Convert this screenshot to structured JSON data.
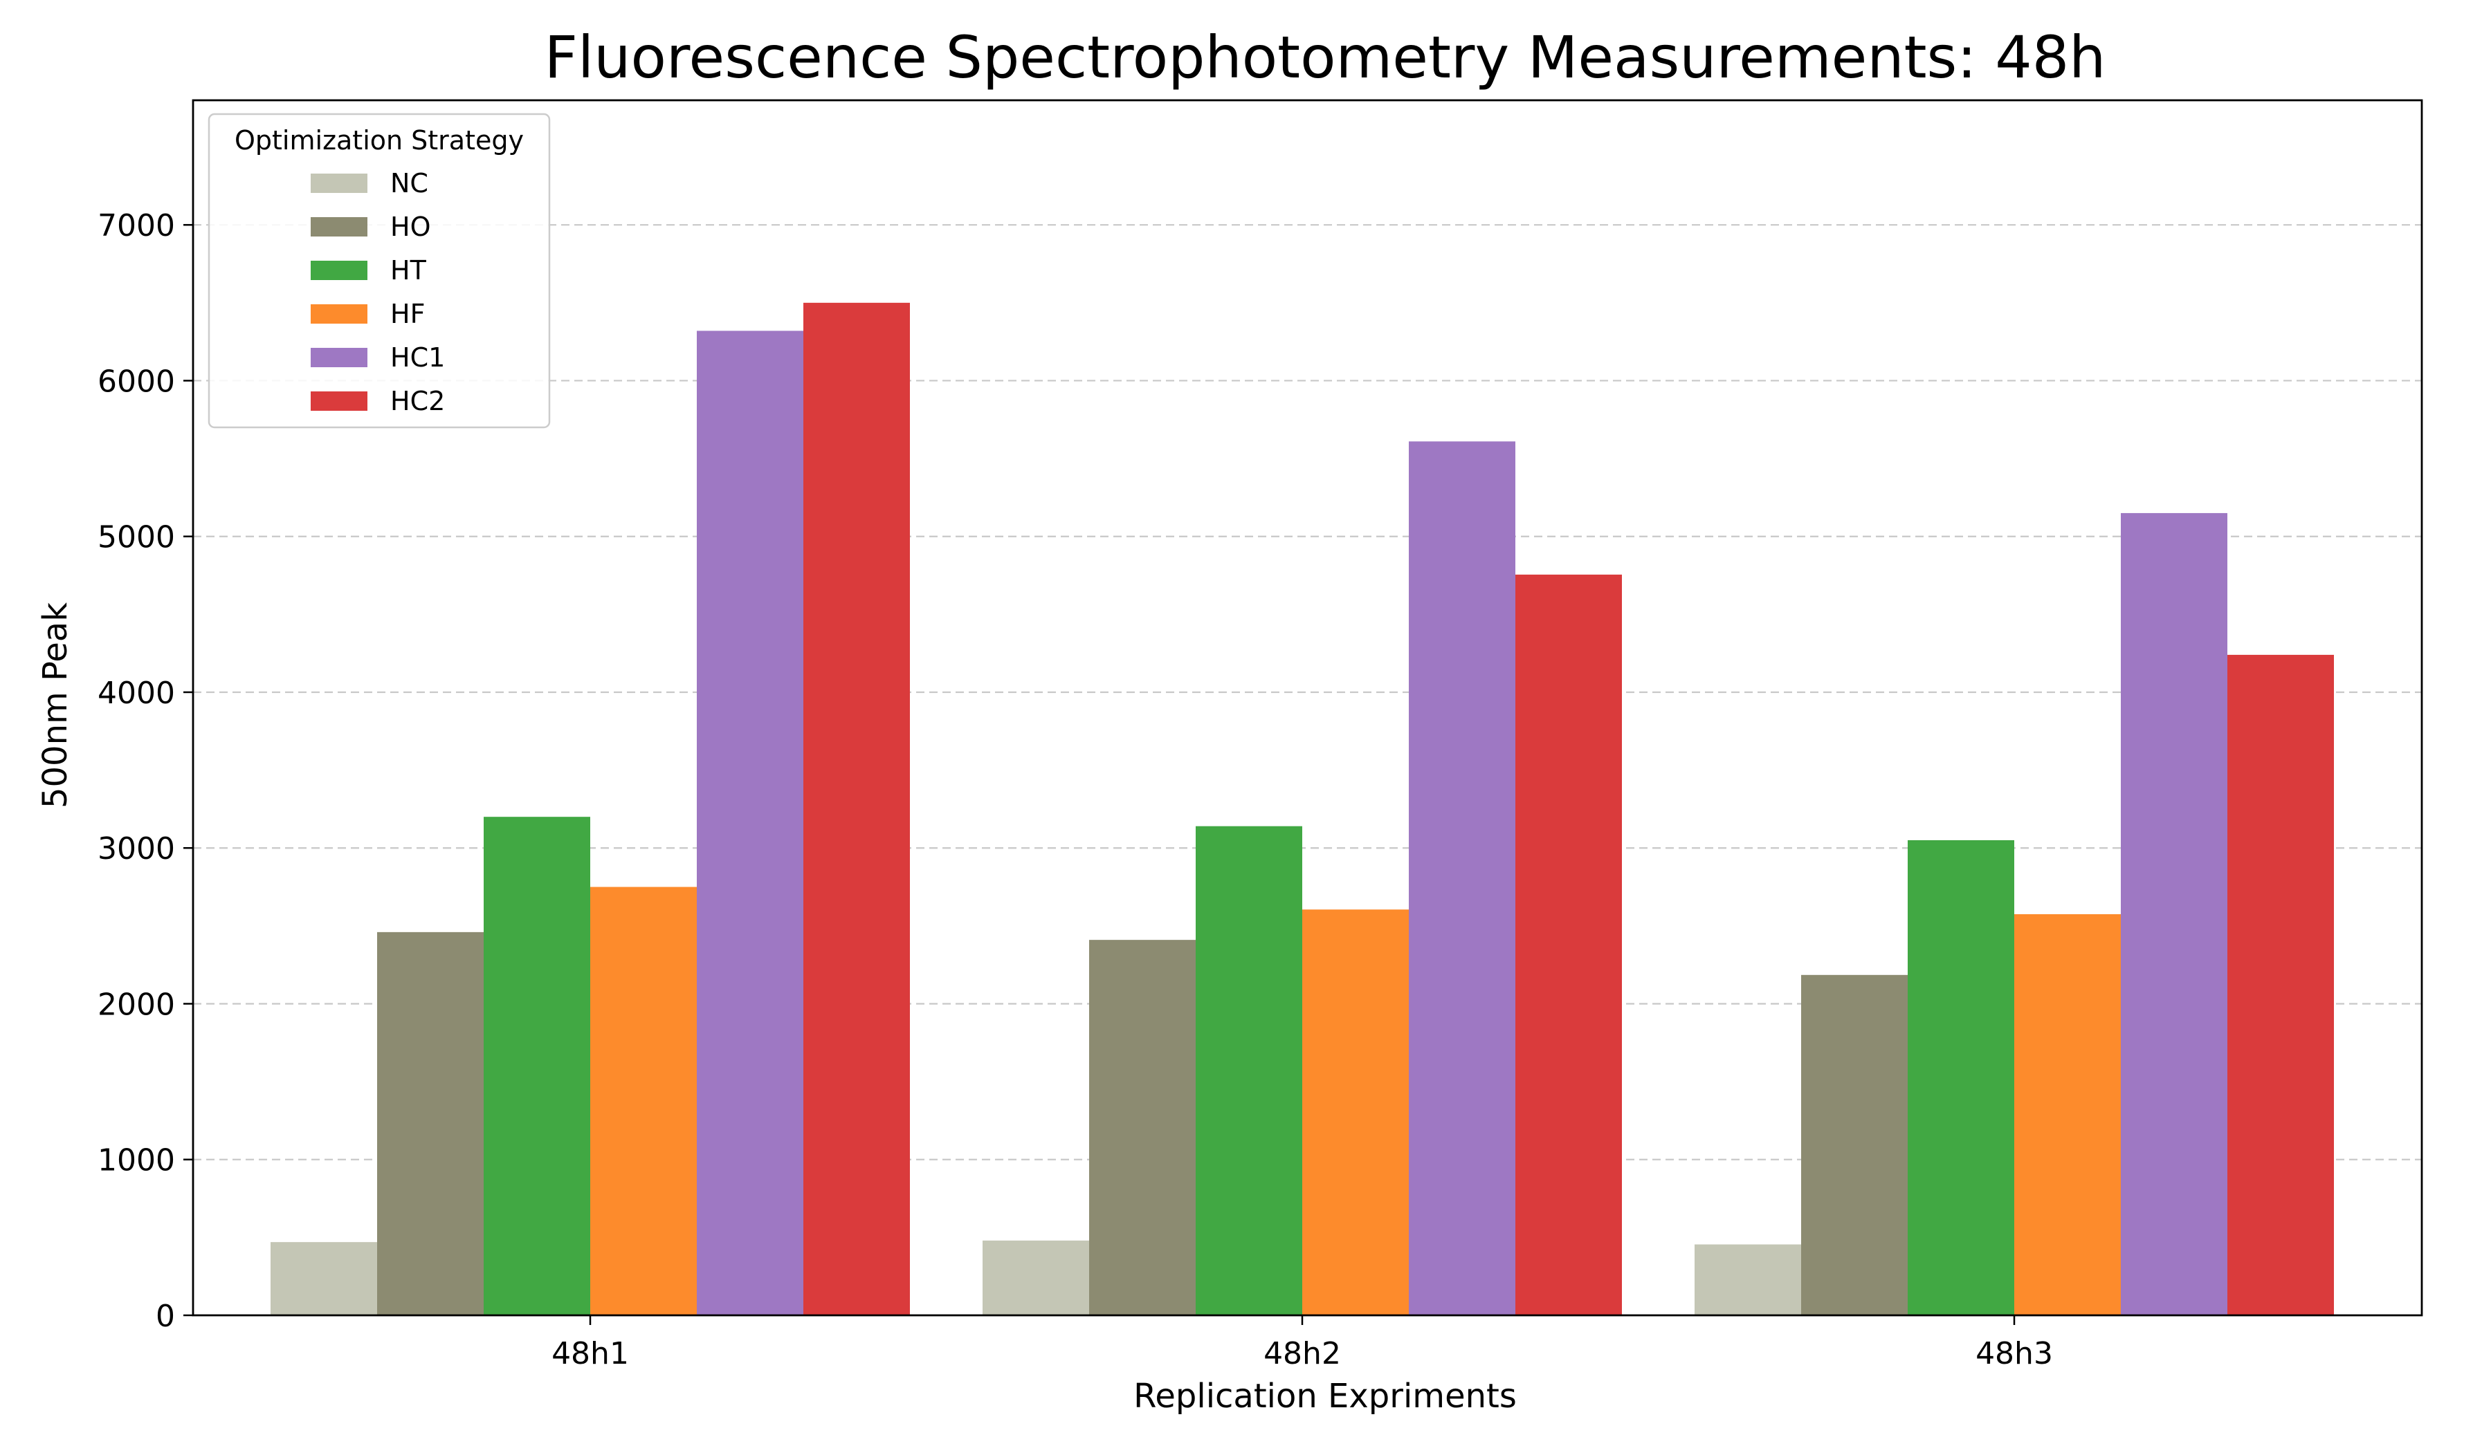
{
  "chart_data": {
    "type": "bar",
    "title": "Fluorescence Spectrophotometry Measurements: 48h",
    "xlabel": "Replication Expriments",
    "ylabel": "500nm Peak",
    "categories": [
      "48h1",
      "48h2",
      "48h3"
    ],
    "ylim": [
      0,
      7800
    ],
    "yticks": [
      0,
      1000,
      2000,
      3000,
      4000,
      5000,
      6000,
      7000
    ],
    "grid": "y-dashed",
    "legend": {
      "title": "Optimization Strategy",
      "placement": "top-left"
    },
    "series": [
      {
        "name": "NC",
        "color": "#c4c6b5",
        "values": [
          470,
          480,
          455
        ]
      },
      {
        "name": "HO",
        "color": "#8c8b71",
        "values": [
          2460,
          2410,
          2185
        ]
      },
      {
        "name": "HT",
        "color": "#41a843",
        "values": [
          3200,
          3140,
          3050
        ]
      },
      {
        "name": "HF",
        "color": "#fd8b2c",
        "values": [
          2750,
          2605,
          2575
        ]
      },
      {
        "name": "HC1",
        "color": "#9e78c3",
        "values": [
          6320,
          5610,
          5150
        ]
      },
      {
        "name": "HC2",
        "color": "#da3b3c",
        "values": [
          6500,
          4755,
          4240
        ]
      }
    ]
  }
}
